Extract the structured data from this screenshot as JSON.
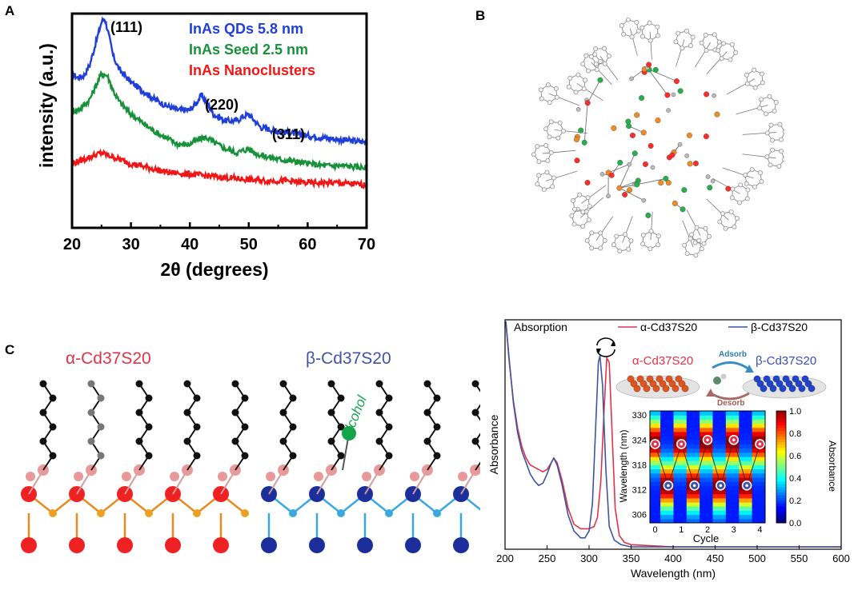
{
  "panel_labels": {
    "a": "A",
    "b": "B",
    "c": "C"
  },
  "colors": {
    "blue": "#1f3fd8",
    "green": "#17913a",
    "red": "#f01616",
    "alpha": "#e0334a",
    "beta": "#3f54a0",
    "inset_beta": "#3a4fb0",
    "alcohol": "#14a44a"
  },
  "chart_data": [
    {
      "type": "line",
      "title": "",
      "xlabel": "2θ (degrees)",
      "ylabel": "intensity (a.u.)",
      "xlim": [
        20,
        70
      ],
      "ylim": [
        0,
        1
      ],
      "xticks": [
        "20",
        "30",
        "40",
        "50",
        "60",
        "70"
      ],
      "legend": [
        "InAs QDs 5.8 nm",
        "InAs Seed 2.5 nm",
        "InAs Nanoclusters"
      ],
      "legend_position": "top-right",
      "annotations": [
        "(111)",
        "(220)",
        "(311)"
      ],
      "series": [
        {
          "name": "InAs QDs 5.8 nm",
          "color": "#1f3fd8",
          "x": [
            20,
            21,
            22,
            23,
            24,
            25,
            25.5,
            26,
            27,
            28,
            29,
            30,
            32,
            34,
            36,
            38,
            40,
            41,
            42,
            43,
            44,
            46,
            48,
            49,
            50,
            51,
            52,
            55,
            58,
            60,
            63,
            66,
            70
          ],
          "y": [
            0.72,
            0.7,
            0.71,
            0.76,
            0.86,
            0.96,
            0.98,
            0.93,
            0.8,
            0.74,
            0.71,
            0.68,
            0.64,
            0.6,
            0.57,
            0.55,
            0.55,
            0.58,
            0.62,
            0.58,
            0.53,
            0.5,
            0.5,
            0.52,
            0.53,
            0.5,
            0.47,
            0.45,
            0.44,
            0.43,
            0.42,
            0.41,
            0.4
          ]
        },
        {
          "name": "InAs Seed 2.5 nm",
          "color": "#17913a",
          "x": [
            20,
            21,
            22,
            23,
            24,
            25,
            26,
            27,
            28,
            29,
            30,
            32,
            34,
            36,
            38,
            40,
            42,
            43,
            44,
            46,
            48,
            49,
            50,
            51,
            52,
            55,
            58,
            60,
            63,
            66,
            70
          ],
          "y": [
            0.55,
            0.55,
            0.57,
            0.6,
            0.66,
            0.72,
            0.71,
            0.64,
            0.59,
            0.56,
            0.53,
            0.49,
            0.45,
            0.42,
            0.39,
            0.39,
            0.42,
            0.42,
            0.4,
            0.37,
            0.35,
            0.36,
            0.37,
            0.35,
            0.34,
            0.32,
            0.31,
            0.3,
            0.29,
            0.29,
            0.28
          ]
        },
        {
          "name": "InAs Nanoclusters",
          "color": "#f01616",
          "x": [
            20,
            22,
            24,
            25,
            26,
            28,
            30,
            33,
            36,
            40,
            44,
            48,
            52,
            56,
            60,
            65,
            70
          ],
          "y": [
            0.3,
            0.32,
            0.34,
            0.35,
            0.34,
            0.32,
            0.3,
            0.28,
            0.26,
            0.25,
            0.24,
            0.23,
            0.22,
            0.22,
            0.21,
            0.21,
            0.2
          ]
        }
      ]
    },
    {
      "type": "line",
      "title": "",
      "xlabel": "Wavelength (nm)",
      "ylabel": "Absorbance",
      "xlim": [
        200,
        600
      ],
      "ylim": [
        0,
        1
      ],
      "xticks": [
        "200",
        "250",
        "300",
        "350",
        "400",
        "450",
        "500",
        "550",
        "600"
      ],
      "annotation": "Absorption",
      "legend": [
        "α-Cd37S20",
        "β-Cd37S20"
      ],
      "legend_position": "top",
      "series": [
        {
          "name": "α-Cd37S20",
          "color": "#e0334a",
          "x": [
            201,
            205,
            210,
            215,
            220,
            225,
            230,
            235,
            240,
            245,
            250,
            255,
            258,
            262,
            268,
            275,
            282,
            290,
            300,
            306,
            310,
            314,
            318,
            321,
            324,
            327,
            331,
            336,
            342,
            350,
            400,
            600
          ],
          "y": [
            1.0,
            0.82,
            0.65,
            0.53,
            0.45,
            0.4,
            0.37,
            0.36,
            0.35,
            0.34,
            0.35,
            0.38,
            0.4,
            0.38,
            0.3,
            0.18,
            0.11,
            0.09,
            0.09,
            0.1,
            0.14,
            0.3,
            0.62,
            0.84,
            0.82,
            0.55,
            0.18,
            0.06,
            0.03,
            0.02,
            0.01,
            0.01
          ]
        },
        {
          "name": "β-Cd37S20",
          "color": "#3f54a0",
          "x": [
            201,
            205,
            210,
            215,
            220,
            225,
            230,
            235,
            240,
            245,
            250,
            255,
            258,
            262,
            268,
            275,
            282,
            290,
            295,
            300,
            304,
            308,
            311,
            313,
            316,
            320,
            324,
            330,
            338,
            350,
            400,
            600
          ],
          "y": [
            1.0,
            0.83,
            0.64,
            0.51,
            0.43,
            0.38,
            0.33,
            0.3,
            0.28,
            0.29,
            0.33,
            0.38,
            0.4,
            0.37,
            0.28,
            0.15,
            0.08,
            0.05,
            0.05,
            0.08,
            0.2,
            0.55,
            0.82,
            0.85,
            0.72,
            0.35,
            0.1,
            0.04,
            0.02,
            0.01,
            0.01,
            0.01
          ]
        }
      ]
    },
    {
      "type": "heatmap",
      "xlabel": "Cycle",
      "ylabel": "Wavelength (nm)",
      "xlim": [
        -0.2,
        4.2
      ],
      "ylim": [
        304,
        331
      ],
      "xticks": [
        "0",
        "1",
        "2",
        "3",
        "4"
      ],
      "yticks": [
        "306",
        "312",
        "318",
        "324",
        "330"
      ],
      "colorbar_label": "Absorbance",
      "colorbar_ticks": [
        "0.0",
        "0.2",
        "0.4",
        "0.6",
        "0.8",
        "1.0"
      ],
      "peak_markers": {
        "x": [
          0,
          0.5,
          1,
          1.5,
          2,
          2.5,
          3,
          3.5,
          4
        ],
        "y": [
          323,
          313,
          323,
          313,
          324,
          313,
          324,
          313,
          323
        ]
      },
      "scheme": {
        "alpha_label": "α-Cd37S20",
        "beta_label": "β-Cd37S20",
        "adsorb": "Adsorb",
        "desorb": "Desorb"
      }
    }
  ],
  "panel_c": {
    "alpha_label": "α-Cd37S20",
    "beta_label": "β-Cd37S20",
    "alcohol_label": "alcohol"
  }
}
